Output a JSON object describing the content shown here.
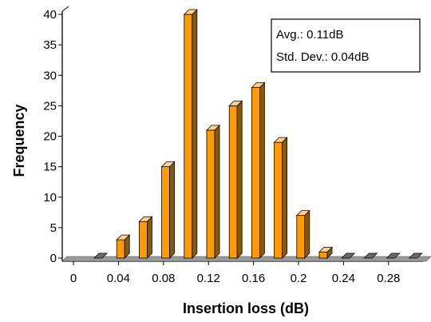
{
  "chart_data": {
    "type": "bar",
    "xlabel": "Insertion loss (dB)",
    "ylabel": "Frequency",
    "ylim": [
      0,
      40
    ],
    "yticks": [
      "0",
      "5",
      "10",
      "15",
      "20",
      "25",
      "30",
      "35",
      "40"
    ],
    "xticks": [
      "0",
      "0.04",
      "0.08",
      "0.12",
      "0.16",
      "0.2",
      "0.24",
      "0.28"
    ],
    "categories": [
      "0",
      "0.02",
      "0.04",
      "0.06",
      "0.08",
      "0.10",
      "0.12",
      "0.14",
      "0.16",
      "0.18",
      "0.2",
      "0.22",
      "0.24",
      "0.26",
      "0.28",
      "0.30"
    ],
    "values": [
      0,
      3,
      6,
      15,
      40,
      21,
      25,
      28,
      19,
      7,
      1,
      0,
      0,
      0,
      0,
      0
    ],
    "annotation": {
      "avg": "Avg.: 0.11dB",
      "std": "Std. Dev.: 0.04dB"
    },
    "colors": {
      "bar_front": "#ff9a00",
      "bar_side": "#8a5a00",
      "bar_top": "#ffd28a",
      "floor": "#6b6b6b",
      "axis": "#000000"
    },
    "grid": false
  }
}
